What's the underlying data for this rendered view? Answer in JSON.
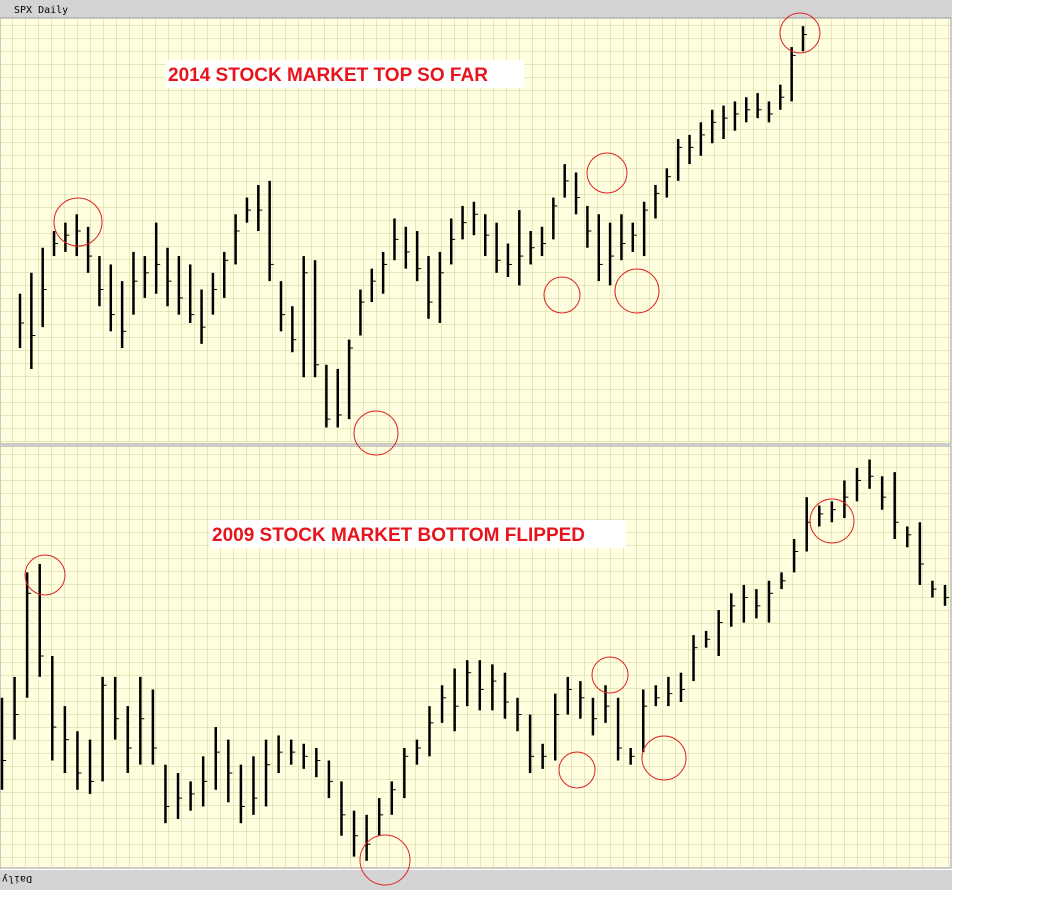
{
  "window_title": "SPX Daily",
  "bottom_tab": "Daily",
  "chart_data": [
    {
      "type": "ohlc",
      "title": "2014 STOCK MARKET TOP SO FAR",
      "ylim": [
        0,
        100
      ],
      "color": "#000000",
      "high": [
        35,
        40,
        46,
        50,
        52,
        54,
        51,
        44,
        42,
        38,
        45,
        44,
        52,
        46,
        44,
        42,
        36,
        40,
        45,
        54,
        58,
        61,
        62,
        38,
        32,
        44,
        43,
        18,
        17,
        24,
        36,
        41,
        45,
        53,
        51,
        50,
        44,
        45,
        53,
        56,
        57,
        54,
        52,
        47,
        55,
        50,
        51,
        58,
        66,
        64,
        56,
        54,
        52,
        54,
        52,
        57,
        61,
        65,
        72,
        73,
        76,
        79,
        80,
        81,
        82,
        83,
        81,
        85,
        94,
        99
      ],
      "low": [
        22,
        17,
        27,
        44,
        45,
        44,
        40,
        32,
        26,
        22,
        30,
        34,
        35,
        32,
        30,
        28,
        23,
        30,
        34,
        42,
        52,
        50,
        38,
        26,
        21,
        15,
        15,
        3,
        3,
        5,
        25,
        33,
        35,
        43,
        41,
        38,
        29,
        28,
        42,
        48,
        49,
        44,
        40,
        39,
        37,
        42,
        44,
        48,
        58,
        54,
        46,
        38,
        37,
        43,
        45,
        44,
        53,
        58,
        62,
        66,
        68,
        71,
        72,
        74,
        76,
        77,
        76,
        79,
        81,
        93
      ],
      "close": [
        28,
        25,
        36,
        47,
        49,
        50,
        44,
        36,
        30,
        26,
        38,
        40,
        42,
        38,
        34,
        30,
        27,
        36,
        43,
        50,
        55,
        55,
        42,
        30,
        24,
        40,
        18,
        5,
        6,
        22,
        33,
        38,
        42,
        48,
        45,
        41,
        33,
        40,
        48,
        52,
        54,
        49,
        43,
        42,
        44,
        46,
        47,
        56,
        62,
        58,
        50,
        42,
        44,
        47,
        49,
        55,
        59,
        63,
        70,
        70,
        73,
        76,
        77,
        78,
        79,
        79,
        78,
        82,
        92,
        97
      ]
    },
    {
      "type": "ohlc",
      "title": "2009 STOCK MARKET BOTTOM FLIPPED",
      "ylim": [
        0,
        100
      ],
      "color": "#000000",
      "high": [
        40,
        45,
        70,
        72,
        50,
        38,
        32,
        30,
        45,
        45,
        38,
        45,
        42,
        24,
        22,
        20,
        26,
        33,
        30,
        24,
        26,
        30,
        31,
        30,
        29,
        28,
        25,
        20,
        13,
        12,
        16,
        20,
        28,
        30,
        38,
        43,
        47,
        49,
        49,
        48,
        46,
        40,
        36,
        29,
        41,
        45,
        44,
        40,
        43,
        40,
        28,
        42,
        43,
        45,
        46,
        55,
        56,
        61,
        65,
        67,
        66,
        68,
        70,
        78,
        88,
        86,
        87,
        92,
        95,
        97,
        93,
        94,
        81,
        82,
        68,
        67
      ],
      "low": [
        18,
        30,
        40,
        45,
        25,
        22,
        18,
        17,
        20,
        30,
        22,
        24,
        24,
        10,
        11,
        13,
        14,
        18,
        15,
        10,
        12,
        14,
        22,
        24,
        23,
        21,
        16,
        7,
        2,
        1,
        7,
        12,
        16,
        24,
        26,
        34,
        32,
        38,
        37,
        37,
        35,
        32,
        22,
        23,
        25,
        36,
        35,
        31,
        34,
        25,
        24,
        27,
        38,
        38,
        39,
        44,
        52,
        50,
        57,
        58,
        59,
        58,
        66,
        70,
        75,
        81,
        82,
        83,
        87,
        90,
        85,
        78,
        76,
        67,
        64,
        62
      ],
      "close": [
        25,
        36,
        65,
        50,
        33,
        30,
        22,
        20,
        43,
        35,
        28,
        35,
        28,
        14,
        16,
        17,
        20,
        27,
        22,
        14,
        16,
        24,
        27,
        27,
        26,
        25,
        20,
        12,
        7,
        5,
        12,
        18,
        26,
        28,
        34,
        40,
        38,
        46,
        42,
        44,
        39,
        36,
        26,
        26,
        36,
        42,
        40,
        35,
        38,
        28,
        26,
        38,
        40,
        41,
        42,
        52,
        54,
        58,
        62,
        64,
        62,
        65,
        68,
        75,
        82,
        84,
        85,
        88,
        92,
        93,
        88,
        82,
        79,
        72,
        66,
        64
      ]
    }
  ]
}
